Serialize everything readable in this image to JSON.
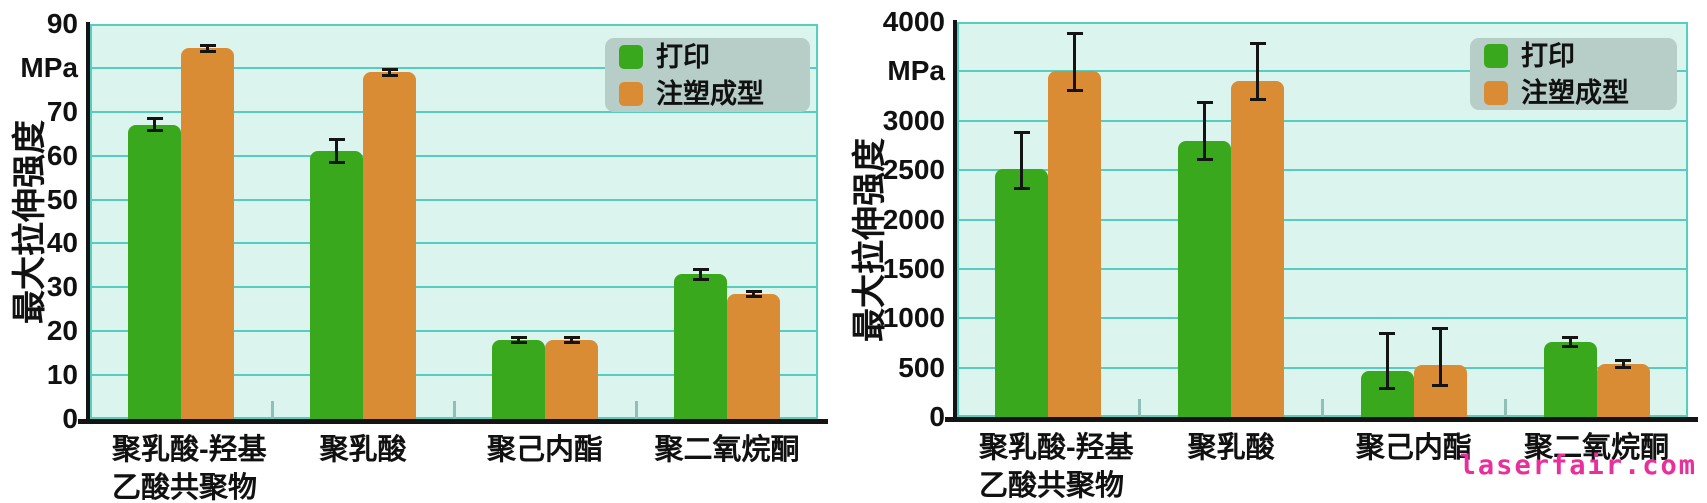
{
  "watermark": "laserfair.com",
  "colors": {
    "print": "#3aa81d",
    "injection": "#d98c33",
    "plot_bg": "#dbf4ed",
    "grid": "#55cdbf",
    "legend_bg": "#b7cdc8",
    "axis": "#141414",
    "error_bar": "#141414",
    "boundary_tick": "#8fc0b7",
    "watermark": "#e82f9b",
    "text": "#111111"
  },
  "legend_labels": [
    "打印",
    "注塑成型"
  ],
  "chart_data": [
    {
      "type": "bar",
      "title": "",
      "xlabel": "",
      "ylabel": "最大拉伸强度",
      "unit": "MPa",
      "ylim": [
        0,
        90
      ],
      "ytick_step": 10,
      "ytick_labels_top_to_bottom": [
        "90",
        "MPa",
        "70",
        "60",
        "50",
        "40",
        "30",
        "20",
        "10",
        "0"
      ],
      "grid": true,
      "legend_position": "top-right",
      "categories": [
        "聚乳酸-羟基乙酸共聚物",
        "聚乳酸",
        "聚己内酯",
        "聚二氧烷酮"
      ],
      "category_display_lines": [
        [
          "聚乳酸-羟基",
          "乙酸共聚物"
        ],
        [
          "聚乳酸"
        ],
        [
          "聚己内酯"
        ],
        [
          "聚二氧烷酮"
        ]
      ],
      "series": [
        {
          "name": "打印",
          "color_key": "print",
          "values": [
            67,
            61,
            18,
            33
          ],
          "err_up": [
            1.7,
            3,
            0.8,
            1.5
          ],
          "err_down": [
            1.5,
            3,
            0.8,
            1.5
          ]
        },
        {
          "name": "注塑成型",
          "color_key": "injection",
          "values": [
            84.5,
            79,
            18,
            28.5
          ],
          "err_up": [
            1,
            1,
            0.8,
            1
          ],
          "err_down": [
            1,
            1,
            0.8,
            1
          ]
        }
      ]
    },
    {
      "type": "bar",
      "title": "",
      "xlabel": "",
      "ylabel": "最大拉伸强度",
      "unit": "MPa",
      "ylim": [
        0,
        4000
      ],
      "ytick_step": 500,
      "ytick_labels_top_to_bottom": [
        "4000",
        "MPa",
        "3000",
        "2500",
        "2000",
        "1500",
        "1000",
        "500",
        "0"
      ],
      "grid": true,
      "legend_position": "top-right",
      "categories": [
        "聚乳酸-羟基乙酸共聚物",
        "聚乳酸",
        "聚己内酯",
        "聚二氧烷酮"
      ],
      "category_display_lines": [
        [
          "聚乳酸-羟基",
          "乙酸共聚物"
        ],
        [
          "聚乳酸"
        ],
        [
          "聚己内酯"
        ],
        [
          "聚二氧烷酮"
        ]
      ],
      "series": [
        {
          "name": "打印",
          "color_key": "print",
          "values": [
            2510,
            2800,
            470,
            760
          ],
          "err_up": [
            390,
            400,
            390,
            60
          ],
          "err_down": [
            210,
            210,
            200,
            60
          ]
        },
        {
          "name": "注塑成型",
          "color_key": "injection",
          "values": [
            3500,
            3400,
            530,
            540
          ],
          "err_up": [
            400,
            395,
            380,
            50
          ],
          "err_down": [
            210,
            200,
            225,
            50
          ]
        }
      ]
    }
  ]
}
